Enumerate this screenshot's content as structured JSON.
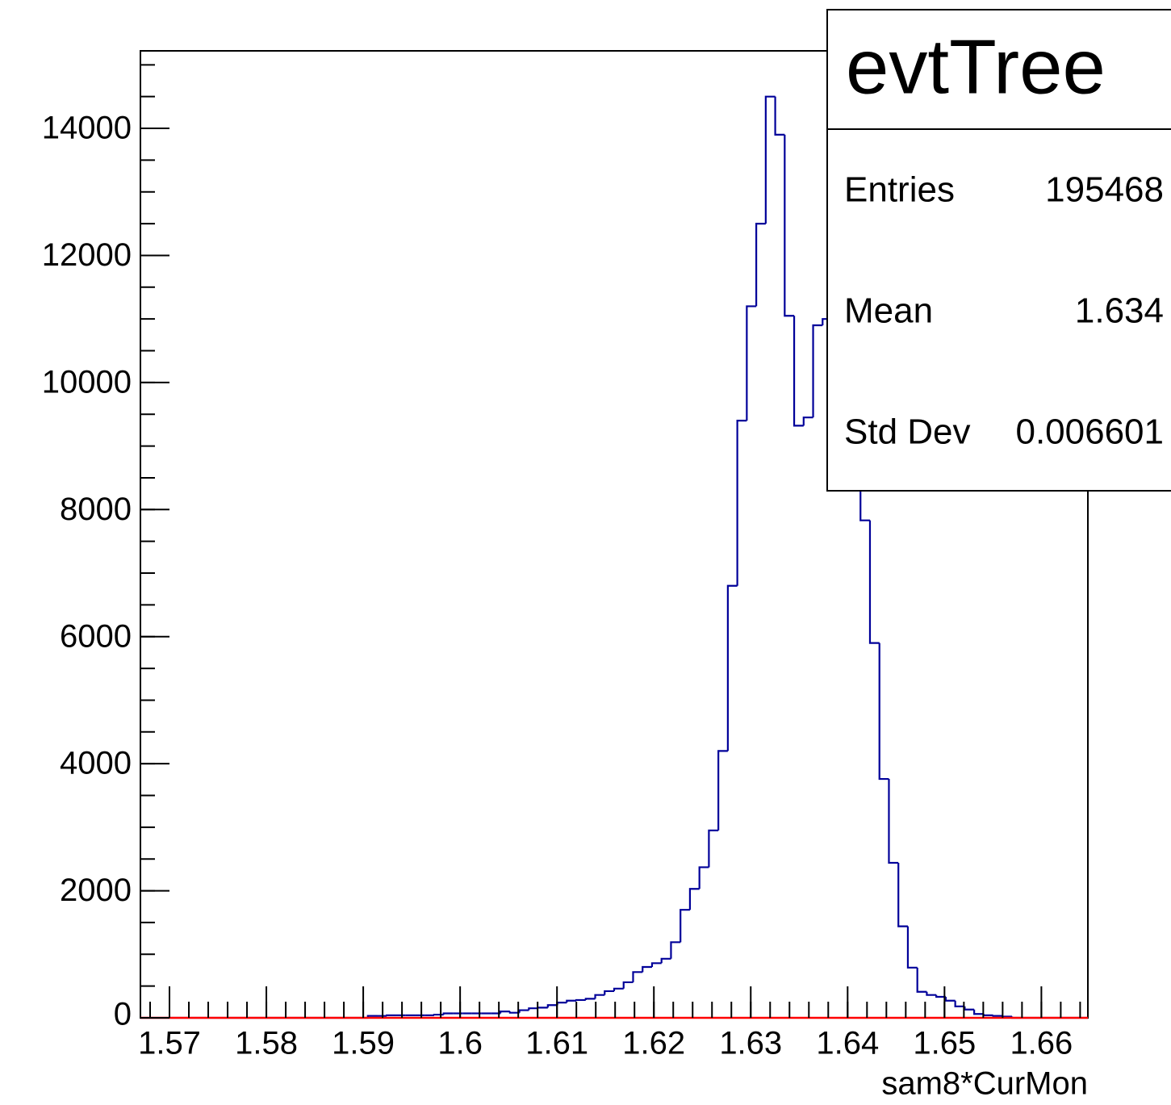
{
  "chart_data": {
    "type": "histogram",
    "xlabel": "sam8*CurMon",
    "color": "#000099",
    "bins": [
      1.567,
      1.567978,
      1.568956,
      1.569934,
      1.570912,
      1.57189,
      1.572868,
      1.573846,
      1.574824,
      1.575802,
      1.57678,
      1.577758,
      1.578736,
      1.579714,
      1.580692,
      1.58167,
      1.582648,
      1.583626,
      1.584604,
      1.585582,
      1.58656,
      1.587538,
      1.588516,
      1.589494,
      1.590472,
      1.59145,
      1.592428,
      1.593406,
      1.594384,
      1.595362,
      1.59634,
      1.597318,
      1.598296,
      1.599274,
      1.600252,
      1.60123,
      1.602208,
      1.603186,
      1.604164,
      1.605142,
      1.60612,
      1.607098,
      1.608076,
      1.609054,
      1.610032,
      1.61101,
      1.611988,
      1.612966,
      1.613944,
      1.614922,
      1.6159,
      1.616878,
      1.617856,
      1.618834,
      1.619812,
      1.62079,
      1.621768,
      1.622746,
      1.623724,
      1.624702,
      1.62568,
      1.626658,
      1.627636,
      1.628614,
      1.629592,
      1.63057,
      1.631548,
      1.632526,
      1.633504,
      1.634482,
      1.63546,
      1.636438,
      1.637416,
      1.638394,
      1.639372,
      1.64035,
      1.641328,
      1.642306,
      1.643284,
      1.644262,
      1.64524,
      1.646218,
      1.647196,
      1.648174,
      1.649152,
      1.65013,
      1.651108,
      1.652086,
      1.653064,
      1.654042,
      1.65502,
      1.655998,
      1.656976,
      1.657954,
      1.658932,
      1.65991,
      1.660888,
      1.661866,
      1.662844,
      1.663822,
      1.6648
    ],
    "values": [
      0,
      0,
      0,
      0,
      0,
      0,
      0,
      0,
      0,
      0,
      0,
      0,
      0,
      0,
      0,
      0,
      0,
      0,
      0,
      0,
      0,
      0,
      0,
      0,
      30,
      30,
      40,
      40,
      40,
      40,
      40,
      50,
      70,
      70,
      70,
      70,
      70,
      70,
      100,
      80,
      120,
      150,
      160,
      200,
      240,
      270,
      280,
      300,
      360,
      420,
      460,
      560,
      720,
      800,
      860,
      930,
      1190,
      1700,
      2030,
      2370,
      2950,
      4200,
      6800,
      9400,
      11200,
      12500,
      14500,
      13900,
      11050,
      9320,
      9450,
      10900,
      11000,
      10200,
      9400,
      8600,
      7830,
      5900,
      3760,
      2440,
      1440,
      790,
      410,
      360,
      330,
      270,
      180,
      130,
      60,
      40,
      30,
      20,
      0,
      0,
      0,
      0,
      0,
      0,
      0,
      0
    ],
    "xlim": [
      1.567,
      1.6648
    ],
    "ylim": [
      0,
      15220
    ],
    "xticks": [
      1.57,
      1.58,
      1.59,
      1.6,
      1.61,
      1.62,
      1.63,
      1.64,
      1.65,
      1.66
    ],
    "xminorticks": [
      1.568,
      1.57,
      1.572,
      1.574,
      1.576,
      1.578,
      1.58,
      1.582,
      1.584,
      1.586,
      1.588,
      1.59,
      1.592,
      1.594,
      1.596,
      1.598,
      1.6,
      1.602,
      1.604,
      1.606,
      1.608,
      1.61,
      1.612,
      1.614,
      1.616,
      1.618,
      1.62,
      1.622,
      1.624,
      1.626,
      1.628,
      1.63,
      1.632,
      1.634,
      1.636,
      1.638,
      1.64,
      1.642,
      1.644,
      1.646,
      1.648,
      1.65,
      1.652,
      1.654,
      1.656,
      1.658,
      1.66,
      1.662,
      1.664
    ],
    "yticks": [
      0,
      2000,
      4000,
      6000,
      8000,
      10000,
      12000,
      14000
    ],
    "yminorticks": [
      0,
      500,
      1000,
      1500,
      2000,
      2500,
      3000,
      3500,
      4000,
      4500,
      5000,
      5500,
      6000,
      6500,
      7000,
      7500,
      8000,
      8500,
      9000,
      9500,
      10000,
      10500,
      11000,
      11500,
      12000,
      12500,
      13000,
      13500,
      14000,
      14500,
      15000
    ],
    "zero_line": {
      "value": 0,
      "color": "#ff0000"
    },
    "stats": {
      "title": "evtTree",
      "rows": [
        [
          "Entries",
          "195468"
        ],
        [
          "Mean",
          "1.634"
        ],
        [
          "Std Dev",
          "0.006601"
        ]
      ]
    }
  }
}
